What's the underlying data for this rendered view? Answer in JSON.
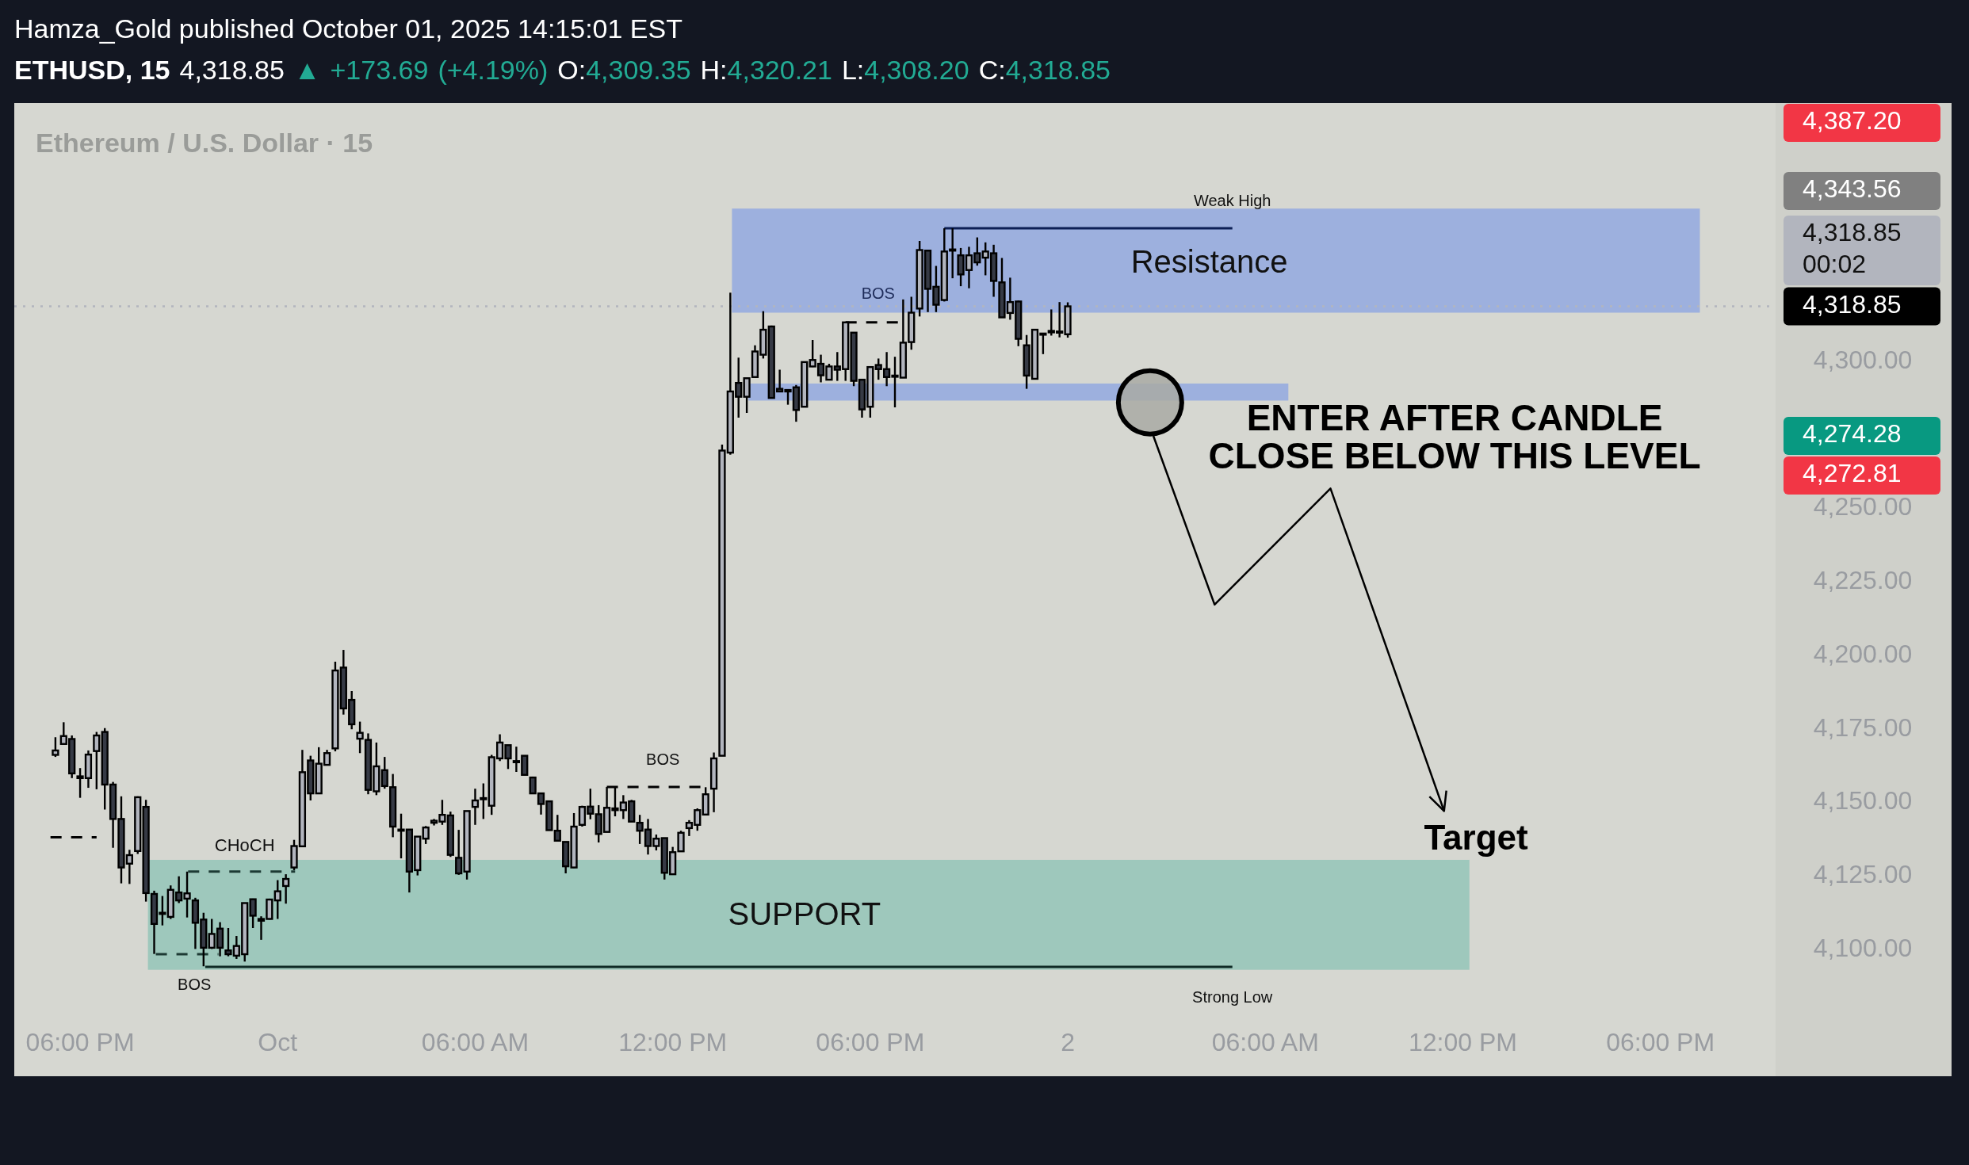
{
  "chart_data": {
    "type": "candlestick",
    "title": "ETHUSD, 15",
    "subtitle": "4,318.85 ▲ +173.69 (+4.19%) O:4,309.35 H:4,320.21 L:4,308.20 C:4,318.85",
    "xlim": [
      "2025-09-30T16:00",
      "2025-10-02T21:30"
    ],
    "ylim": [
      4057,
      4388
    ],
    "xticks": [
      {
        "value": "2025-09-30T18:00",
        "label": "06:00 PM"
      },
      {
        "value": "2025-10-01T00:00",
        "label": "Oct"
      },
      {
        "value": "2025-10-01T06:00",
        "label": "06:00 AM"
      },
      {
        "value": "2025-10-01T12:00",
        "label": "12:00 PM"
      },
      {
        "value": "2025-10-01T18:00",
        "label": "06:00 PM"
      },
      {
        "value": "2025-10-02T00:00",
        "label": "2"
      },
      {
        "value": "2025-10-02T06:00",
        "label": "06:00 AM"
      },
      {
        "value": "2025-10-02T12:00",
        "label": "12:00 PM"
      },
      {
        "value": "2025-10-02T18:00",
        "label": "06:00 PM"
      }
    ],
    "yticks": [
      {
        "value": 4100,
        "label": "4,100.00"
      },
      {
        "value": 4125,
        "label": "4,125.00"
      },
      {
        "value": 4150,
        "label": "4,150.00"
      },
      {
        "value": 4175,
        "label": "4,175.00"
      },
      {
        "value": 4200,
        "label": "4,200.00"
      },
      {
        "value": 4225,
        "label": "4,225.00"
      },
      {
        "value": 4250,
        "label": "4,250.00"
      },
      {
        "value": 4300,
        "label": "4,300.00"
      }
    ],
    "x": [
      "2025-09-30T17:15",
      "2025-09-30T17:30",
      "2025-09-30T17:45",
      "2025-09-30T18:00",
      "2025-09-30T18:15",
      "2025-09-30T18:30",
      "2025-09-30T18:45",
      "2025-09-30T19:00",
      "2025-09-30T19:15",
      "2025-09-30T19:30",
      "2025-09-30T19:45",
      "2025-09-30T20:00",
      "2025-09-30T20:15",
      "2025-09-30T20:30",
      "2025-09-30T20:45",
      "2025-09-30T21:00",
      "2025-09-30T21:15",
      "2025-09-30T21:30",
      "2025-09-30T21:45",
      "2025-09-30T22:00",
      "2025-09-30T22:15",
      "2025-09-30T22:30",
      "2025-09-30T22:45",
      "2025-09-30T23:00",
      "2025-09-30T23:15",
      "2025-09-30T23:30",
      "2025-09-30T23:45",
      "2025-10-01T00:00",
      "2025-10-01T00:15",
      "2025-10-01T00:30",
      "2025-10-01T00:45",
      "2025-10-01T01:00",
      "2025-10-01T01:15",
      "2025-10-01T01:30",
      "2025-10-01T01:45",
      "2025-10-01T02:00",
      "2025-10-01T02:15",
      "2025-10-01T02:30",
      "2025-10-01T02:45",
      "2025-10-01T03:00",
      "2025-10-01T03:15",
      "2025-10-01T03:30",
      "2025-10-01T03:45",
      "2025-10-01T04:00",
      "2025-10-01T04:15",
      "2025-10-01T04:30",
      "2025-10-01T04:45",
      "2025-10-01T05:00",
      "2025-10-01T05:15",
      "2025-10-01T05:30",
      "2025-10-01T05:45",
      "2025-10-01T06:00",
      "2025-10-01T06:15",
      "2025-10-01T06:30",
      "2025-10-01T06:45",
      "2025-10-01T07:00",
      "2025-10-01T07:15",
      "2025-10-01T07:30",
      "2025-10-01T07:45",
      "2025-10-01T08:00",
      "2025-10-01T08:15",
      "2025-10-01T08:30",
      "2025-10-01T08:45",
      "2025-10-01T09:00",
      "2025-10-01T09:15",
      "2025-10-01T09:30",
      "2025-10-01T09:45",
      "2025-10-01T10:00",
      "2025-10-01T10:15",
      "2025-10-01T10:30",
      "2025-10-01T10:45",
      "2025-10-01T11:00",
      "2025-10-01T11:15",
      "2025-10-01T11:30",
      "2025-10-01T11:45",
      "2025-10-01T12:00",
      "2025-10-01T12:15",
      "2025-10-01T12:30",
      "2025-10-01T12:45",
      "2025-10-01T13:00",
      "2025-10-01T13:15",
      "2025-10-01T13:30",
      "2025-10-01T13:45",
      "2025-10-01T14:00",
      "2025-10-01T14:15",
      "2025-10-01T14:30",
      "2025-10-01T14:45",
      "2025-10-01T15:00",
      "2025-10-01T15:15",
      "2025-10-01T15:30",
      "2025-10-01T15:45",
      "2025-10-01T16:00",
      "2025-10-01T16:15",
      "2025-10-01T16:30",
      "2025-10-01T16:45",
      "2025-10-01T17:00",
      "2025-10-01T17:15",
      "2025-10-01T17:30",
      "2025-10-01T17:45",
      "2025-10-01T18:00",
      "2025-10-01T18:15",
      "2025-10-01T18:30",
      "2025-10-01T18:45",
      "2025-10-01T19:00",
      "2025-10-01T19:15",
      "2025-10-01T19:30",
      "2025-10-01T19:45",
      "2025-10-01T20:00",
      "2025-10-01T20:15",
      "2025-10-01T20:30",
      "2025-10-01T20:45",
      "2025-10-01T21:00",
      "2025-10-01T21:15",
      "2025-10-01T21:30",
      "2025-10-01T21:45",
      "2025-10-01T22:00",
      "2025-10-01T22:15",
      "2025-10-01T22:30",
      "2025-10-01T22:45",
      "2025-10-01T23:00",
      "2025-10-01T23:15",
      "2025-10-01T23:30",
      "2025-10-01T23:45",
      "2025-10-02T00:00"
    ],
    "ohlc": [
      [
        4166.3,
        4172.3,
        4165.6,
        4167.8
      ],
      [
        4170.0,
        4177.4,
        4169.9,
        4172.7
      ],
      [
        4171.7,
        4172.9,
        4158.4,
        4160.0
      ],
      [
        4159.0,
        4161.8,
        4151.7,
        4158.4
      ],
      [
        4158.4,
        4167.8,
        4155.1,
        4166.4
      ],
      [
        4167.6,
        4174.1,
        4154.6,
        4172.9
      ],
      [
        4174.1,
        4175.4,
        4147.7,
        4156.2
      ],
      [
        4156.2,
        4157.1,
        4134.7,
        4144.5
      ],
      [
        4144.5,
        4152.2,
        4122.6,
        4128.0
      ],
      [
        4129.3,
        4134.0,
        4122.4,
        4132.2
      ],
      [
        4133.6,
        4152.2,
        4132.6,
        4151.9
      ],
      [
        4148.6,
        4151.0,
        4116.4,
        4119.3
      ],
      [
        4119.0,
        4120.1,
        4098.6,
        4108.8
      ],
      [
        4112.6,
        4118.3,
        4108.3,
        4112.2
      ],
      [
        4111.2,
        4121.9,
        4110.5,
        4120.4
      ],
      [
        4119.5,
        4125.0,
        4115.9,
        4116.8
      ],
      [
        4117.4,
        4126.6,
        4111.0,
        4119.2
      ],
      [
        4116.8,
        4117.7,
        4100.3,
        4109.2
      ],
      [
        4110.3,
        4112.6,
        4094.4,
        4100.7
      ],
      [
        4100.7,
        4110.5,
        4100.3,
        4105.4
      ],
      [
        4107.2,
        4109.4,
        4097.8,
        4100.7
      ],
      [
        4099.8,
        4107.4,
        4097.8,
        4098.5
      ],
      [
        4098.0,
        4104.7,
        4096.9,
        4101.3
      ],
      [
        4098.5,
        4115.9,
        4096.0,
        4115.9
      ],
      [
        4117.2,
        4117.4,
        4107.4,
        4111.6
      ],
      [
        4109.9,
        4111.4,
        4103.4,
        4110.5
      ],
      [
        4110.5,
        4117.4,
        4110.3,
        4117.1
      ],
      [
        4116.8,
        4123.7,
        4110.5,
        4119.9
      ],
      [
        4121.7,
        4125.7,
        4115.7,
        4124.1
      ],
      [
        4128.0,
        4137.4,
        4127.1,
        4135.3
      ],
      [
        4135.2,
        4168.0,
        4135.0,
        4160.4
      ],
      [
        4164.4,
        4166.0,
        4150.8,
        4153.2
      ],
      [
        4153.2,
        4168.9,
        4153.0,
        4163.3
      ],
      [
        4162.9,
        4168.0,
        4162.7,
        4166.9
      ],
      [
        4168.5,
        4198.0,
        4167.5,
        4195.0
      ],
      [
        4196.0,
        4202.0,
        4180.0,
        4182.1
      ],
      [
        4185.0,
        4188.0,
        4175.0,
        4176.7
      ],
      [
        4171.8,
        4177.6,
        4166.9,
        4173.8
      ],
      [
        4171.4,
        4173.6,
        4152.9,
        4154.4
      ],
      [
        4153.9,
        4170.5,
        4152.6,
        4162.4
      ],
      [
        4161.1,
        4165.6,
        4154.8,
        4155.7
      ],
      [
        4155.3,
        4159.8,
        4138.3,
        4141.9
      ],
      [
        4140.9,
        4146.3,
        4131.1,
        4140.5
      ],
      [
        4140.9,
        4140.9,
        4119.5,
        4126.6
      ],
      [
        4127.1,
        4138.5,
        4125.3,
        4138.5
      ],
      [
        4137.8,
        4142.1,
        4136.0,
        4141.6
      ],
      [
        4143.2,
        4144.5,
        4142.3,
        4143.9
      ],
      [
        4143.6,
        4151.0,
        4142.5,
        4145.9
      ],
      [
        4145.7,
        4147.0,
        4131.6,
        4132.3
      ],
      [
        4131.3,
        4140.8,
        4125.5,
        4126.0
      ],
      [
        4126.6,
        4147.2,
        4123.9,
        4147.2
      ],
      [
        4148.6,
        4154.8,
        4142.5,
        4150.8
      ],
      [
        4151.2,
        4156.6,
        4144.5,
        4151.6
      ],
      [
        4149.0,
        4166.3,
        4145.9,
        4165.5
      ],
      [
        4165.1,
        4173.3,
        4164.2,
        4170.5
      ],
      [
        4169.6,
        4169.6,
        4161.5,
        4165.1
      ],
      [
        4164.2,
        4169.1,
        4160.5,
        4163.8
      ],
      [
        4166.0,
        4166.0,
        4159.5,
        4159.5
      ],
      [
        4158.6,
        4158.9,
        4153.0,
        4153.2
      ],
      [
        4153.2,
        4153.5,
        4146.0,
        4149.6
      ],
      [
        4150.5,
        4150.5,
        4140.7,
        4140.7
      ],
      [
        4140.5,
        4145.9,
        4137.1,
        4137.1
      ],
      [
        4136.7,
        4136.7,
        4126.0,
        4128.4
      ],
      [
        4128.0,
        4146.5,
        4127.8,
        4141.9
      ],
      [
        4142.5,
        4149.0,
        4141.9,
        4148.6
      ],
      [
        4148.7,
        4154.8,
        4144.4,
        4146.3
      ],
      [
        4146.1,
        4149.2,
        4136.5,
        4139.4
      ],
      [
        4140.1,
        4155.4,
        4140.1,
        4148.3
      ],
      [
        4148.1,
        4155.4,
        4145.4,
        4147.5
      ],
      [
        4147.5,
        4152.6,
        4144.5,
        4150.1
      ],
      [
        4150.5,
        4151.0,
        4143.6,
        4143.6
      ],
      [
        4143.2,
        4145.9,
        4136.0,
        4140.5
      ],
      [
        4140.9,
        4144.5,
        4132.4,
        4135.3
      ],
      [
        4135.3,
        4139.2,
        4133.8,
        4137.8
      ],
      [
        4138.0,
        4138.0,
        4123.9,
        4126.2
      ],
      [
        4125.7,
        4135.0,
        4125.7,
        4133.2
      ],
      [
        4133.5,
        4140.5,
        4133.5,
        4139.8
      ],
      [
        4141.4,
        4144.1,
        4138.7,
        4143.2
      ],
      [
        4142.5,
        4148.1,
        4140.5,
        4147.5
      ],
      [
        4146.0,
        4155.3,
        4146.0,
        4152.9
      ],
      [
        4154.8,
        4167.1,
        4146.8,
        4165.1
      ],
      [
        4166.0,
        4271.8,
        4166.0,
        4269.8
      ],
      [
        4269.1,
        4323.5,
        4268.4,
        4289.9
      ],
      [
        4292.8,
        4301.4,
        4281.0,
        4288.1
      ],
      [
        4288.1,
        4294.4,
        4282.6,
        4294.4
      ],
      [
        4294.8,
        4305.6,
        4294.8,
        4303.5
      ],
      [
        4302.4,
        4317.2,
        4301.1,
        4310.9
      ],
      [
        4312.0,
        4312.3,
        4287.7,
        4287.7
      ],
      [
        4290.8,
        4297.3,
        4289.9,
        4289.9
      ],
      [
        4290.4,
        4290.4,
        4285.4,
        4289.9
      ],
      [
        4291.3,
        4292.1,
        4279.6,
        4283.6
      ],
      [
        4284.7,
        4299.9,
        4284.7,
        4299.9
      ],
      [
        4298.4,
        4307.4,
        4298.2,
        4300.6
      ],
      [
        4299.3,
        4302.4,
        4293.0,
        4295.4
      ],
      [
        4293.9,
        4299.3,
        4293.9,
        4298.4
      ],
      [
        4298.4,
        4303.3,
        4293.5,
        4297.3
      ],
      [
        4297.5,
        4313.4,
        4293.5,
        4313.4
      ],
      [
        4309.9,
        4309.9,
        4291.7,
        4293.5
      ],
      [
        4293.9,
        4293.9,
        4281.0,
        4283.8
      ],
      [
        4284.7,
        4298.2,
        4281.0,
        4298.2
      ],
      [
        4298.9,
        4301.1,
        4293.9,
        4297.5
      ],
      [
        4297.5,
        4303.3,
        4291.7,
        4294.8
      ],
      [
        4295.3,
        4301.7,
        4284.5,
        4295.1
      ],
      [
        4294.6,
        4321.2,
        4294.6,
        4306.5
      ],
      [
        4306.7,
        4322.1,
        4304.1,
        4316.7
      ],
      [
        4318.1,
        4341.1,
        4315.4,
        4338.0
      ],
      [
        4337.8,
        4337.8,
        4316.9,
        4324.8
      ],
      [
        4325.5,
        4332.6,
        4316.9,
        4319.4
      ],
      [
        4321.0,
        4345.4,
        4320.5,
        4337.5
      ],
      [
        4338.2,
        4345.4,
        4328.4,
        4338.0
      ],
      [
        4336.2,
        4338.7,
        4325.7,
        4329.7
      ],
      [
        4331.2,
        4339.1,
        4325.0,
        4336.2
      ],
      [
        4336.9,
        4342.3,
        4332.7,
        4333.8
      ],
      [
        4335.4,
        4340.6,
        4329.4,
        4337.5
      ],
      [
        4336.9,
        4339.8,
        4322.1,
        4327.5
      ],
      [
        4327.0,
        4335.3,
        4315.1,
        4315.1
      ],
      [
        4316.6,
        4328.6,
        4314.3,
        4320.3
      ],
      [
        4320.5,
        4320.8,
        4305.3,
        4307.8
      ],
      [
        4305.6,
        4309.1,
        4290.8,
        4295.3
      ],
      [
        4294.2,
        4310.9,
        4294.2,
        4310.9
      ],
      [
        4309.4,
        4309.6,
        4302.6,
        4309.6
      ],
      [
        4310.5,
        4317.8,
        4308.9,
        4310.0
      ],
      [
        4310.3,
        4320.3,
        4308.3,
        4310.0
      ],
      [
        4309.35,
        4320.21,
        4308.2,
        4318.85
      ]
    ],
    "ref_lines": [
      {
        "axis": "y",
        "value": 4318.85,
        "line_style": "dotted",
        "color": "#b2b5be",
        "label": "4,318.85"
      }
    ],
    "annotations": [
      "Hamza_Gold published October 01, 2025 14:15:01 EST",
      "Ethereum / U.S. Dollar · 15",
      "BOS",
      "CHoCH",
      "BOS",
      "BOS",
      {
        "text": "Weak High",
        "x": "2025-10-01T20:15",
        "y": 4345.4
      },
      "Strong Low",
      "Resistance",
      "SUPPORT",
      "ENTER AFTER CANDLE CLOSE BELOW THIS LEVEL",
      "Target",
      "4,387.20",
      "4,343.56",
      "4,318.85\n00:02",
      "4,274.28",
      "4,272.81"
    ]
  }
}
